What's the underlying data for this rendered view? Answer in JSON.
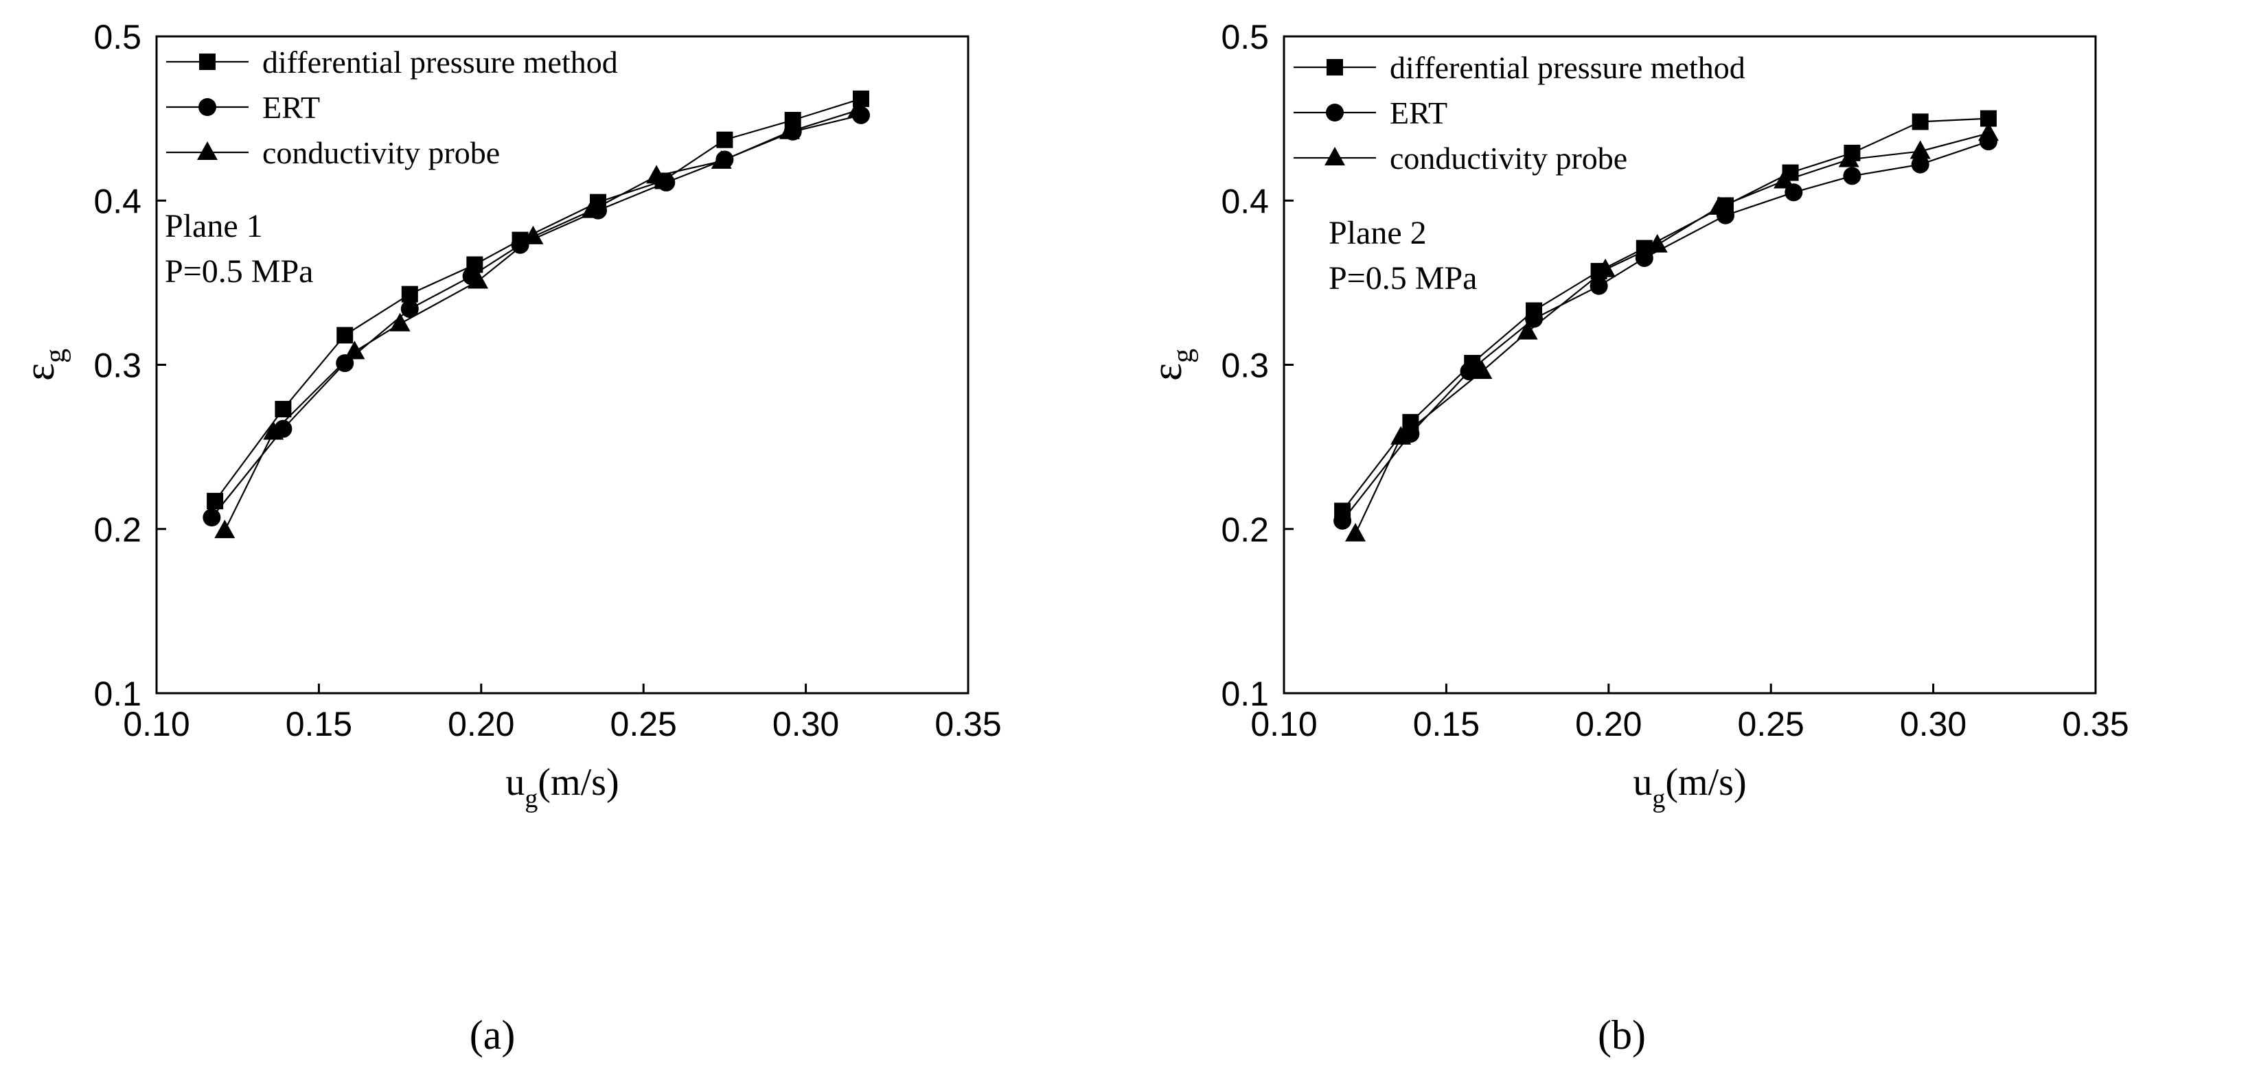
{
  "chart_data": [
    {
      "type": "line",
      "panel_label": "(a)",
      "annotation": [
        "Plane 1",
        "P=0.5 MPa"
      ],
      "xlabel": "u",
      "xlabel_sub": "g",
      "xlabel_unit": "(m/s)",
      "ylabel": "ε",
      "ylabel_sub": "g",
      "xlim": [
        0.1,
        0.35
      ],
      "ylim": [
        0.1,
        0.5
      ],
      "xticks": [
        "0.10",
        "0.15",
        "0.20",
        "0.25",
        "0.30",
        "0.35"
      ],
      "yticks": [
        "0.1",
        "0.2",
        "0.3",
        "0.4",
        "0.5"
      ],
      "legend_position": "top-left",
      "series": [
        {
          "name": "differential pressure method",
          "marker": "square",
          "x": [
            0.118,
            0.139,
            0.158,
            0.178,
            0.198,
            0.212,
            0.236,
            0.256,
            0.275,
            0.296,
            0.317
          ],
          "y": [
            0.217,
            0.273,
            0.318,
            0.343,
            0.361,
            0.376,
            0.399,
            0.412,
            0.437,
            0.449,
            0.462
          ]
        },
        {
          "name": "ERT",
          "marker": "circle",
          "x": [
            0.117,
            0.139,
            0.158,
            0.178,
            0.197,
            0.212,
            0.236,
            0.257,
            0.275,
            0.296,
            0.317
          ],
          "y": [
            0.207,
            0.261,
            0.301,
            0.334,
            0.354,
            0.373,
            0.394,
            0.411,
            0.425,
            0.442,
            0.452
          ]
        },
        {
          "name": "conductivity probe",
          "marker": "triangle",
          "x": [
            0.121,
            0.136,
            0.161,
            0.175,
            0.199,
            0.216,
            0.234,
            0.254,
            0.274,
            0.295,
            0.316
          ],
          "y": [
            0.199,
            0.259,
            0.308,
            0.325,
            0.351,
            0.378,
            0.394,
            0.415,
            0.424,
            0.442,
            0.455
          ]
        }
      ]
    },
    {
      "type": "line",
      "panel_label": "(b)",
      "annotation": [
        "Plane 2",
        "P=0.5 MPa"
      ],
      "xlabel": "u",
      "xlabel_sub": "g",
      "xlabel_unit": "(m/s)",
      "ylabel": "ε",
      "ylabel_sub": "g",
      "xlim": [
        0.1,
        0.35
      ],
      "ylim": [
        0.1,
        0.5
      ],
      "xticks": [
        "0.10",
        "0.15",
        "0.20",
        "0.25",
        "0.30",
        "0.35"
      ],
      "yticks": [
        "0.1",
        "0.2",
        "0.3",
        "0.4",
        "0.5"
      ],
      "legend_position": "top-left",
      "series": [
        {
          "name": "differential pressure method",
          "marker": "square",
          "x": [
            0.118,
            0.139,
            0.158,
            0.177,
            0.197,
            0.211,
            0.236,
            0.256,
            0.275,
            0.296,
            0.317
          ],
          "y": [
            0.211,
            0.265,
            0.301,
            0.333,
            0.357,
            0.371,
            0.397,
            0.417,
            0.429,
            0.448,
            0.45
          ]
        },
        {
          "name": "ERT",
          "marker": "circle",
          "x": [
            0.118,
            0.139,
            0.157,
            0.177,
            0.197,
            0.211,
            0.236,
            0.257,
            0.275,
            0.296,
            0.317
          ],
          "y": [
            0.205,
            0.258,
            0.296,
            0.328,
            0.348,
            0.365,
            0.391,
            0.405,
            0.415,
            0.422,
            0.436
          ]
        },
        {
          "name": "conductivity probe",
          "marker": "triangle",
          "x": [
            0.122,
            0.136,
            0.161,
            0.175,
            0.199,
            0.215,
            0.234,
            0.254,
            0.274,
            0.296,
            0.317
          ],
          "y": [
            0.197,
            0.256,
            0.296,
            0.32,
            0.358,
            0.373,
            0.396,
            0.412,
            0.425,
            0.43,
            0.441
          ]
        }
      ]
    }
  ]
}
